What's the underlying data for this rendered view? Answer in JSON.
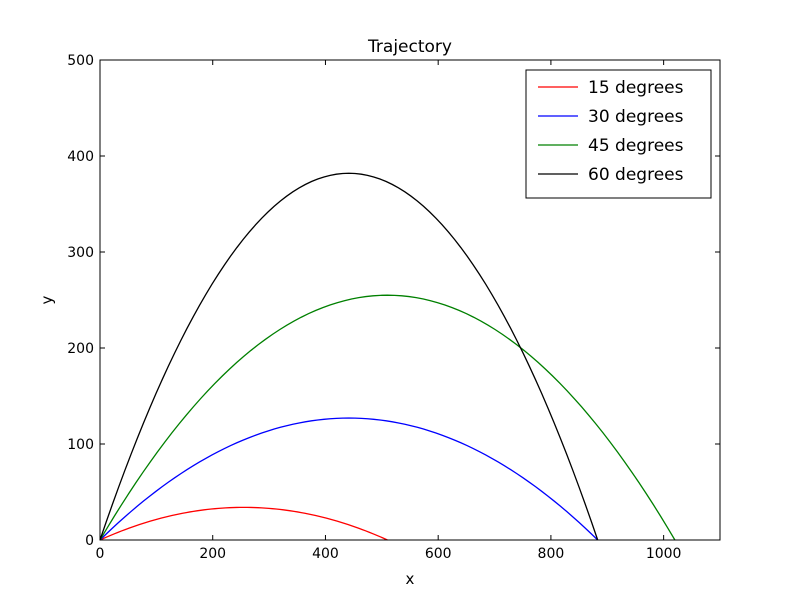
{
  "chart_data": {
    "type": "line",
    "title": "Trajectory",
    "xlabel": "x",
    "ylabel": "y",
    "xlim": [
      0,
      1100
    ],
    "ylim": [
      0,
      500
    ],
    "xticks": [
      0,
      200,
      400,
      600,
      800,
      1000
    ],
    "yticks": [
      0,
      100,
      200,
      300,
      400,
      500
    ],
    "grid": false,
    "legend_position": "top-right",
    "series": [
      {
        "name": "15 degrees",
        "color": "#ff0000",
        "x_end": 510,
        "y_peak": 34
      },
      {
        "name": "30 degrees",
        "color": "#0000ff",
        "x_end": 883,
        "y_peak": 127
      },
      {
        "name": "45 degrees",
        "color": "#008000",
        "x_end": 1020,
        "y_peak": 255
      },
      {
        "name": "60 degrees",
        "color": "#000000",
        "x_end": 883,
        "y_peak": 382
      }
    ]
  }
}
